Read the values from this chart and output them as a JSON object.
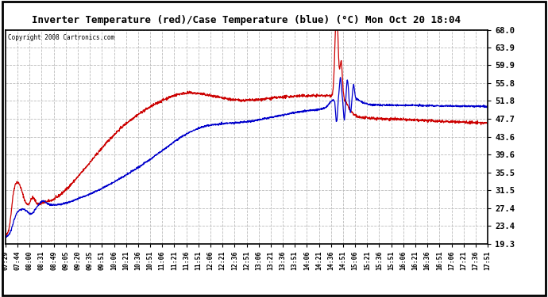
{
  "title": "Inverter Temperature (red)/Case Temperature (blue) (°C) Mon Oct 20 18:04",
  "copyright": "Copyright 2008 Cartronics.com",
  "ylim": [
    19.3,
    68.0
  ],
  "yticks": [
    19.3,
    23.4,
    27.4,
    31.5,
    35.5,
    39.6,
    43.6,
    47.7,
    51.8,
    55.8,
    59.9,
    63.9,
    68.0
  ],
  "plot_bg_color": "#ffffff",
  "grid_color": "#aaaaaa",
  "red_color": "#cc0000",
  "blue_color": "#0000cc",
  "xtick_labels": [
    "07:29",
    "07:44",
    "08:00",
    "08:31",
    "08:49",
    "09:05",
    "09:20",
    "09:35",
    "09:51",
    "10:06",
    "10:21",
    "10:36",
    "10:51",
    "11:06",
    "11:21",
    "11:36",
    "11:51",
    "12:06",
    "12:21",
    "12:36",
    "12:51",
    "13:06",
    "13:21",
    "13:36",
    "13:51",
    "14:06",
    "14:21",
    "14:36",
    "14:51",
    "15:06",
    "15:21",
    "15:36",
    "15:51",
    "16:06",
    "16:21",
    "16:36",
    "16:51",
    "17:06",
    "17:21",
    "17:36",
    "17:51"
  ]
}
